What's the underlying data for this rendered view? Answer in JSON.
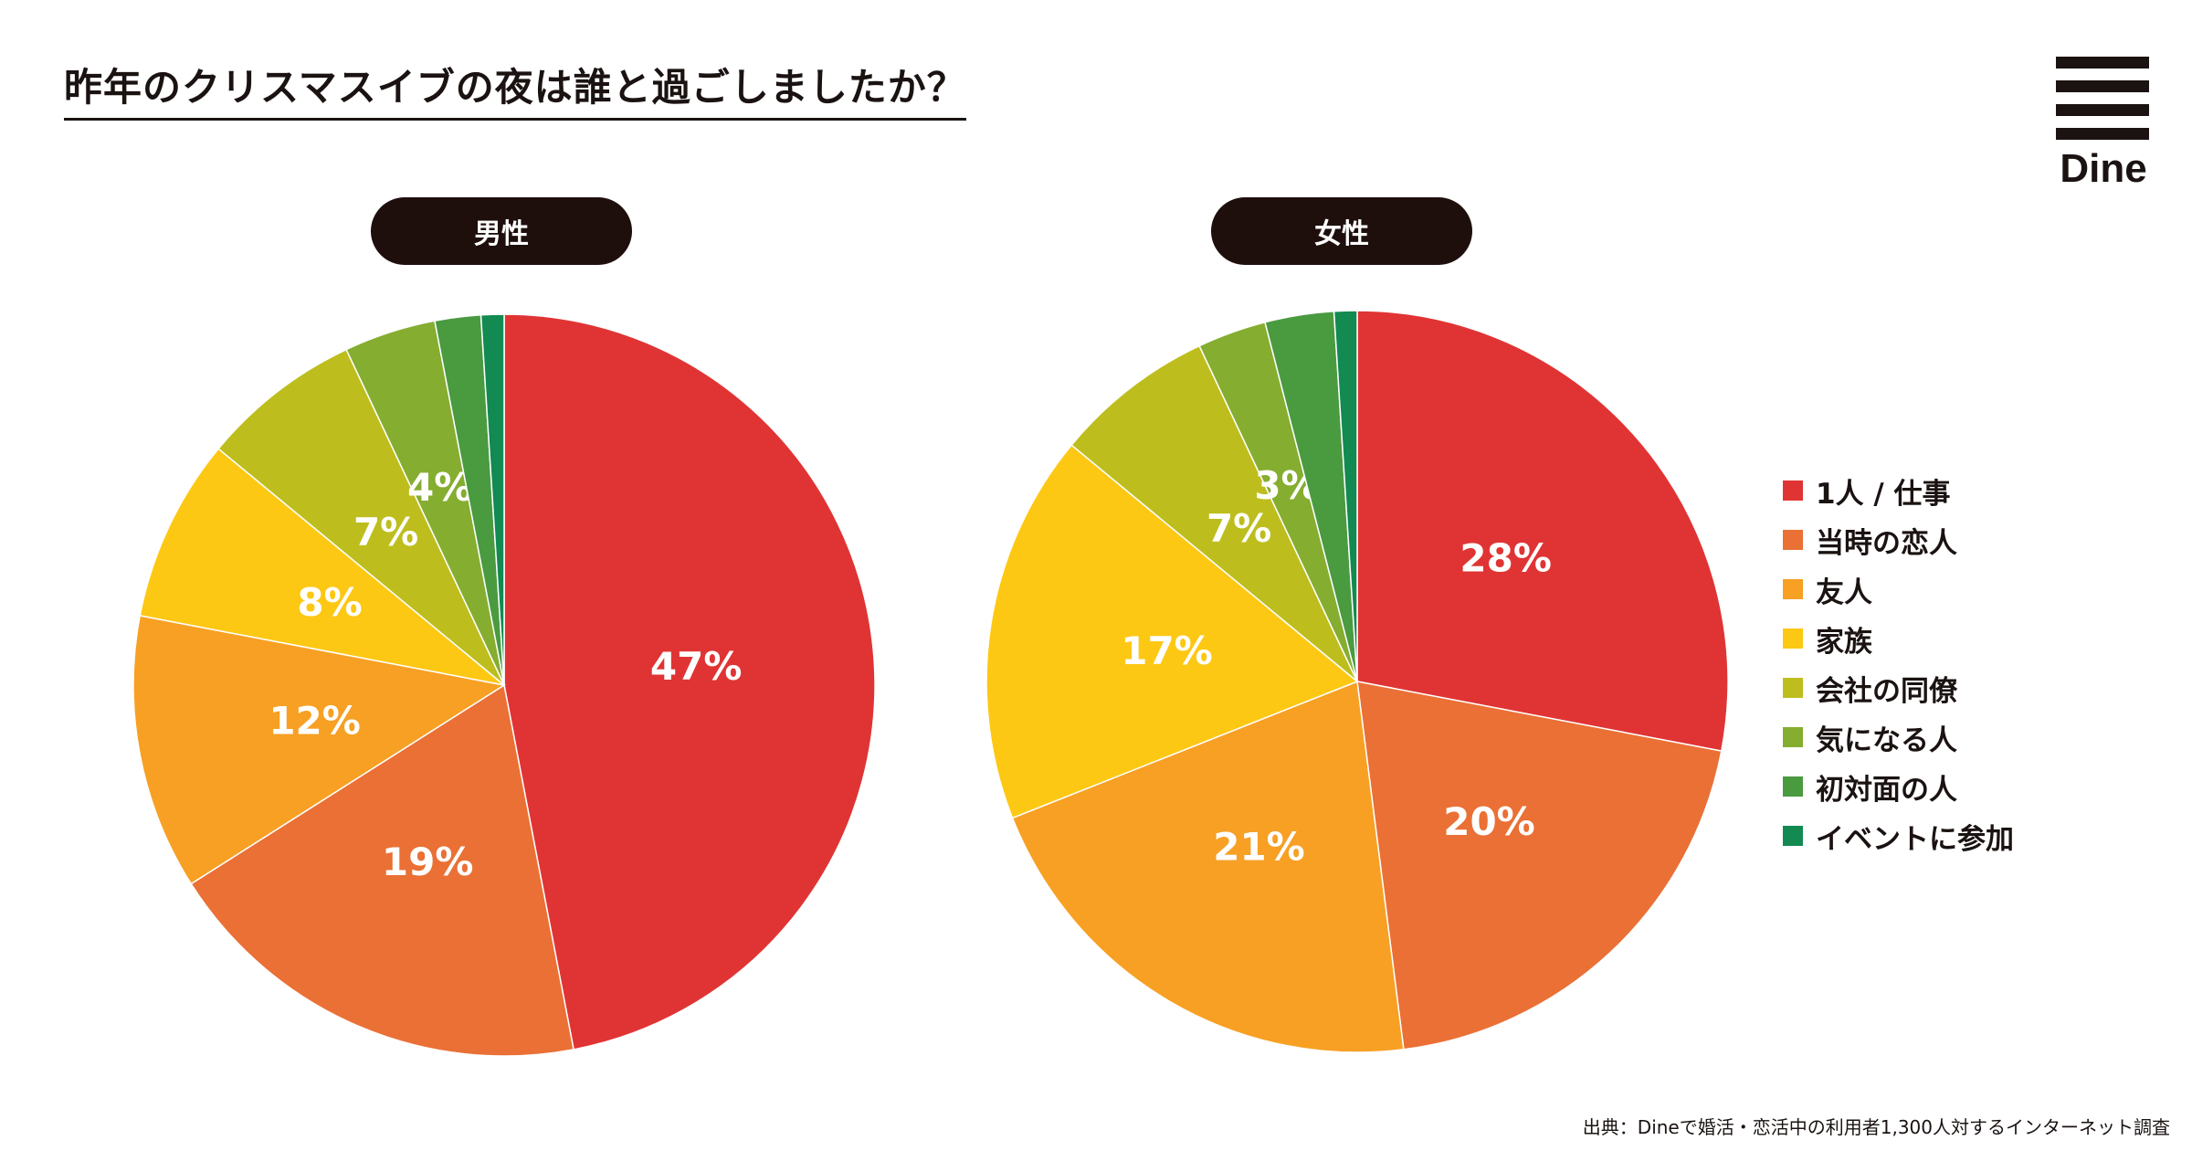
{
  "title": "昨年のクリスマスイブの夜は誰と過ごしましたか？",
  "logo": {
    "text": "Dine"
  },
  "source": "出典：Dineで婚活・恋活中の利用者1,300人対するインターネット調査",
  "chart_data": [
    {
      "type": "pie",
      "title": "男性",
      "categories": [
        "1人 / 仕事",
        "当時の恋人",
        "友人",
        "家族",
        "会社の同僚",
        "気になる人",
        "初対面の人",
        "イベントに参加"
      ],
      "values": [
        47,
        19,
        12,
        8,
        7,
        4,
        2,
        1
      ],
      "labels": [
        "47%",
        "19%",
        "12%",
        "8%",
        "7%",
        "4%",
        "",
        ""
      ]
    },
    {
      "type": "pie",
      "title": "女性",
      "categories": [
        "1人 / 仕事",
        "当時の恋人",
        "友人",
        "家族",
        "会社の同僚",
        "気になる人",
        "初対面の人",
        "イベントに参加"
      ],
      "values": [
        28,
        20,
        21,
        17,
        7,
        3,
        3,
        1
      ],
      "labels": [
        "28%",
        "20%",
        "21%",
        "17%",
        "7%",
        "3%",
        "",
        ""
      ]
    }
  ],
  "legend": [
    {
      "label": "1人 / 仕事",
      "color": "#e03434"
    },
    {
      "label": "当時の恋人",
      "color": "#ea7035"
    },
    {
      "label": "友人",
      "color": "#f7a024"
    },
    {
      "label": "家族",
      "color": "#fdc814"
    },
    {
      "label": "会社の同僚",
      "color": "#bdbe1d"
    },
    {
      "label": "気になる人",
      "color": "#85ad30"
    },
    {
      "label": "初対面の人",
      "color": "#4a9a40"
    },
    {
      "label": "イベントに参加",
      "color": "#128a52"
    }
  ]
}
